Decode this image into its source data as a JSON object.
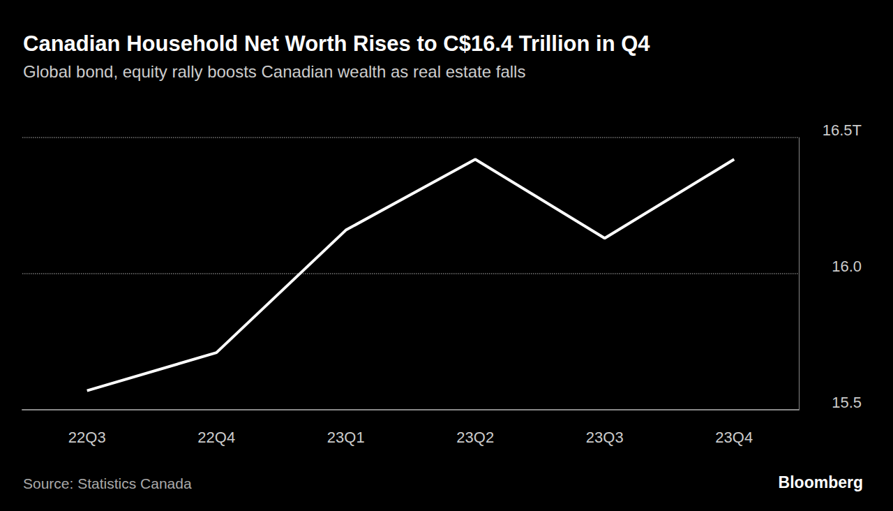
{
  "chart_data": {
    "type": "line",
    "title": "Canadian Household Net Worth Rises to C$16.4 Trillion in Q4",
    "subtitle": "Global bond, equity rally boosts Canadian wealth as real estate falls",
    "source": "Source: Statistics Canada",
    "credit": "Bloomberg",
    "categories": [
      "22Q3",
      "22Q4",
      "23Q1",
      "23Q2",
      "23Q3",
      "23Q4"
    ],
    "values": [
      15.57,
      15.71,
      16.16,
      16.42,
      16.13,
      16.42
    ],
    "color": "#ffffff",
    "ylim": [
      15.5,
      16.5
    ],
    "yticks": [
      15.5,
      {
        "value": 16,
        "label": "16.0"
      },
      {
        "value": 16.5,
        "label": "16.5T"
      }
    ],
    "grid": true
  }
}
